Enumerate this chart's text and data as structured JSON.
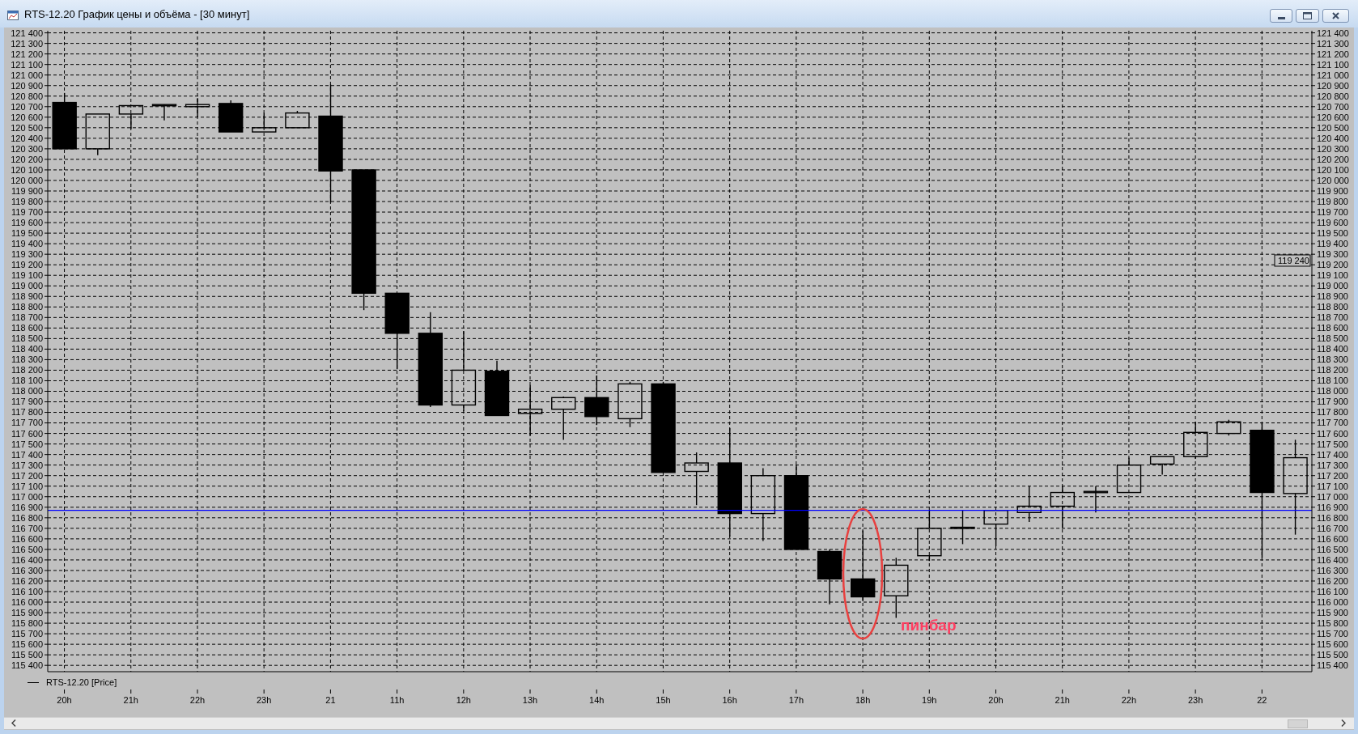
{
  "chart_data": {
    "type": "candlestick",
    "title": "RTS-12.20 График цены и объёма - [30 минут]",
    "categories": [
      "20h",
      null,
      "21h",
      null,
      "22h",
      null,
      "23h",
      null,
      "21",
      null,
      "11h",
      null,
      "12h",
      null,
      "13h",
      null,
      "14h",
      null,
      "15h",
      null,
      "16h",
      null,
      "17h",
      null,
      "18h",
      null,
      "19h",
      null,
      "20h",
      null,
      "21h",
      null,
      "22h",
      null,
      "23h",
      null,
      "22",
      null
    ],
    "series": [
      {
        "name": "RTS-12.20 [Price]",
        "color": "#000000",
        "ohlc": [
          [
            120740,
            120830,
            120300,
            120300
          ],
          [
            120300,
            120630,
            120240,
            120630
          ],
          [
            120630,
            120710,
            120490,
            120710
          ],
          [
            120720,
            120720,
            120570,
            120720
          ],
          [
            120700,
            120780,
            120600,
            120720
          ],
          [
            120730,
            120760,
            120460,
            120460
          ],
          [
            120460,
            120640,
            120460,
            120500
          ],
          [
            120500,
            120660,
            120500,
            120640
          ],
          [
            120610,
            120910,
            119790,
            120090
          ],
          [
            120100,
            120100,
            118770,
            118930
          ],
          [
            118930,
            118930,
            118210,
            118550
          ],
          [
            118550,
            118750,
            117850,
            117870
          ],
          [
            117870,
            118570,
            117810,
            118200
          ],
          [
            118190,
            118290,
            117770,
            117770
          ],
          [
            117790,
            118060,
            117580,
            117830
          ],
          [
            117830,
            117950,
            117540,
            117940
          ],
          [
            117940,
            118150,
            117680,
            117760
          ],
          [
            117740,
            118090,
            117660,
            118070
          ],
          [
            118070,
            118090,
            117230,
            117230
          ],
          [
            117240,
            117420,
            116920,
            117320
          ],
          [
            117320,
            117650,
            116620,
            116840
          ],
          [
            116840,
            117270,
            116580,
            117200
          ],
          [
            117200,
            117300,
            116500,
            116500
          ],
          [
            116480,
            116500,
            115980,
            116220
          ],
          [
            116220,
            116680,
            116010,
            116050
          ],
          [
            116060,
            116420,
            115850,
            116350
          ],
          [
            116440,
            116870,
            116390,
            116700
          ],
          [
            116700,
            116870,
            116550,
            116710
          ],
          [
            116740,
            116870,
            116530,
            116870
          ],
          [
            116850,
            117100,
            116760,
            116910
          ],
          [
            116910,
            117100,
            116700,
            117040
          ],
          [
            117040,
            117100,
            116850,
            117050
          ],
          [
            117040,
            117370,
            117040,
            117300
          ],
          [
            117310,
            117380,
            117210,
            117380
          ],
          [
            117380,
            117710,
            117360,
            117610
          ],
          [
            117600,
            117730,
            117580,
            117710
          ],
          [
            117630,
            117700,
            116420,
            117040
          ],
          [
            117030,
            117540,
            116640,
            117370
          ]
        ]
      }
    ],
    "ylim": [
      115340,
      121420
    ],
    "yticks": [
      {
        "value": 115400,
        "label": "115 400"
      },
      {
        "value": 115500,
        "label": "115 500"
      },
      {
        "value": 115600,
        "label": "115 600"
      },
      {
        "value": 115700,
        "label": "115 700"
      },
      {
        "value": 115800,
        "label": "115 800"
      },
      {
        "value": 115900,
        "label": "115 900"
      },
      {
        "value": 116000,
        "label": "116 000"
      },
      {
        "value": 116100,
        "label": "116 100"
      },
      {
        "value": 116200,
        "label": "116 200"
      },
      {
        "value": 116300,
        "label": "116 300"
      },
      {
        "value": 116400,
        "label": "116 400"
      },
      {
        "value": 116500,
        "label": "116 500"
      },
      {
        "value": 116600,
        "label": "116 600"
      },
      {
        "value": 116700,
        "label": "116 700"
      },
      {
        "value": 116800,
        "label": "116 800"
      },
      {
        "value": 116900,
        "label": "116 900"
      },
      {
        "value": 117000,
        "label": "117 000"
      },
      {
        "value": 117100,
        "label": "117 100"
      },
      {
        "value": 117200,
        "label": "117 200"
      },
      {
        "value": 117300,
        "label": "117 300"
      },
      {
        "value": 117400,
        "label": "117 400"
      },
      {
        "value": 117500,
        "label": "117 500"
      },
      {
        "value": 117600,
        "label": "117 600"
      },
      {
        "value": 117700,
        "label": "117 700"
      },
      {
        "value": 117800,
        "label": "117 800"
      },
      {
        "value": 117900,
        "label": "117 900"
      },
      {
        "value": 118000,
        "label": "118 000"
      },
      {
        "value": 118100,
        "label": "118 100"
      },
      {
        "value": 118200,
        "label": "118 200"
      },
      {
        "value": 118300,
        "label": "118 300"
      },
      {
        "value": 118400,
        "label": "118 400"
      },
      {
        "value": 118500,
        "label": "118 500"
      },
      {
        "value": 118600,
        "label": "118 600"
      },
      {
        "value": 118700,
        "label": "118 700"
      },
      {
        "value": 118800,
        "label": "118 800"
      },
      {
        "value": 118900,
        "label": "118 900"
      },
      {
        "value": 119000,
        "label": "119 000"
      },
      {
        "value": 119100,
        "label": "119 100"
      },
      {
        "value": 119200,
        "label": "119 200"
      },
      {
        "value": 119300,
        "label": "119 300"
      },
      {
        "value": 119400,
        "label": "119 400"
      },
      {
        "value": 119500,
        "label": "119 500"
      },
      {
        "value": 119600,
        "label": "119 600"
      },
      {
        "value": 119700,
        "label": "119 700"
      },
      {
        "value": 119800,
        "label": "119 800"
      },
      {
        "value": 119900,
        "label": "119 900"
      },
      {
        "value": 120000,
        "label": "120 000"
      },
      {
        "value": 120100,
        "label": "120 100"
      },
      {
        "value": 120200,
        "label": "120 200"
      },
      {
        "value": 120300,
        "label": "120 300"
      },
      {
        "value": 120400,
        "label": "120 400"
      },
      {
        "value": 120500,
        "label": "120 500"
      },
      {
        "value": 120600,
        "label": "120 600"
      },
      {
        "value": 120700,
        "label": "120 700"
      },
      {
        "value": 120800,
        "label": "120 800"
      },
      {
        "value": 120900,
        "label": "120 900"
      },
      {
        "value": 121000,
        "label": "121 000"
      },
      {
        "value": 121100,
        "label": "121 100"
      },
      {
        "value": 121200,
        "label": "121 200"
      },
      {
        "value": 121300,
        "label": "121 300"
      },
      {
        "value": 121400,
        "label": "121 400"
      }
    ],
    "y2lim": [
      115340,
      121420
    ],
    "y2ticks": [
      {
        "value": 115400,
        "label": "115 400"
      },
      {
        "value": 115500,
        "label": "115 500"
      },
      {
        "value": 115600,
        "label": "115 600"
      },
      {
        "value": 115700,
        "label": "115 700"
      },
      {
        "value": 115800,
        "label": "115 800"
      },
      {
        "value": 115900,
        "label": "115 900"
      },
      {
        "value": 116000,
        "label": "116 000"
      },
      {
        "value": 116100,
        "label": "116 100"
      },
      {
        "value": 116200,
        "label": "116 200"
      },
      {
        "value": 116300,
        "label": "116 300"
      },
      {
        "value": 116400,
        "label": "116 400"
      },
      {
        "value": 116500,
        "label": "116 500"
      },
      {
        "value": 116600,
        "label": "116 600"
      },
      {
        "value": 116700,
        "label": "116 700"
      },
      {
        "value": 116800,
        "label": "116 800"
      },
      {
        "value": 116900,
        "label": "116 900"
      },
      {
        "value": 117000,
        "label": "117 000"
      },
      {
        "value": 117100,
        "label": "117 100"
      },
      {
        "value": 117200,
        "label": "117 200"
      },
      {
        "value": 117300,
        "label": "117 300"
      },
      {
        "value": 117400,
        "label": "117 400"
      },
      {
        "value": 117500,
        "label": "117 500"
      },
      {
        "value": 117600,
        "label": "117 600"
      },
      {
        "value": 117700,
        "label": "117 700"
      },
      {
        "value": 117800,
        "label": "117 800"
      },
      {
        "value": 117900,
        "label": "117 900"
      },
      {
        "value": 118000,
        "label": "118 000"
      },
      {
        "value": 118100,
        "label": "118 100"
      },
      {
        "value": 118200,
        "label": "118 200"
      },
      {
        "value": 118300,
        "label": "118 300"
      },
      {
        "value": 118400,
        "label": "118 400"
      },
      {
        "value": 118500,
        "label": "118 500"
      },
      {
        "value": 118600,
        "label": "118 600"
      },
      {
        "value": 118700,
        "label": "118 700"
      },
      {
        "value": 118800,
        "label": "118 800"
      },
      {
        "value": 118900,
        "label": "118 900"
      },
      {
        "value": 119000,
        "label": "119 000"
      },
      {
        "value": 119100,
        "label": "119 100"
      },
      {
        "value": 119200,
        "label": "119 200"
      },
      {
        "value": 119300,
        "label": "119 300"
      },
      {
        "value": 119400,
        "label": "119 400"
      },
      {
        "value": 119500,
        "label": "119 500"
      },
      {
        "value": 119600,
        "label": "119 600"
      },
      {
        "value": 119700,
        "label": "119 700"
      },
      {
        "value": 119800,
        "label": "119 800"
      },
      {
        "value": 119900,
        "label": "119 900"
      },
      {
        "value": 120000,
        "label": "120 000"
      },
      {
        "value": 120100,
        "label": "120 100"
      },
      {
        "value": 120200,
        "label": "120 200"
      },
      {
        "value": 120300,
        "label": "120 300"
      },
      {
        "value": 120400,
        "label": "120 400"
      },
      {
        "value": 120500,
        "label": "120 500"
      },
      {
        "value": 120600,
        "label": "120 600"
      },
      {
        "value": 120700,
        "label": "120 700"
      },
      {
        "value": 120800,
        "label": "120 800"
      },
      {
        "value": 120900,
        "label": "120 900"
      },
      {
        "value": 121000,
        "label": "121 000"
      },
      {
        "value": 121100,
        "label": "121 100"
      },
      {
        "value": 121200,
        "label": "121 200"
      },
      {
        "value": 121300,
        "label": "121 300"
      },
      {
        "value": 121400,
        "label": "121 400"
      }
    ],
    "grid": true,
    "legend": "bottom left",
    "ref_lines": [
      {
        "axis": "y",
        "value": 116870,
        "color": "#0000ff"
      }
    ],
    "annotations": [
      "пинбар",
      {
        "text": "119 240",
        "y": 119240
      }
    ]
  }
}
